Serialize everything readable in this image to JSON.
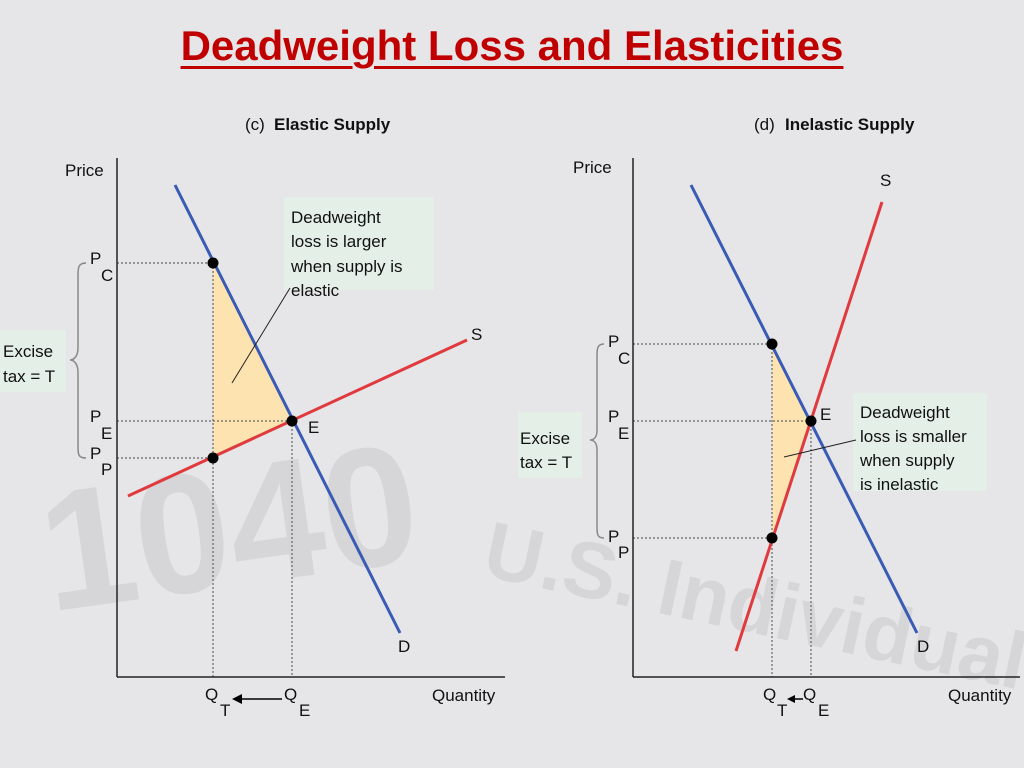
{
  "title": "Deadweight Loss and Elasticities",
  "panel_c": {
    "prefix": "(c)",
    "heading": "Elastic Supply",
    "y_axis": "Price",
    "x_axis": "Quantity",
    "p_main": "P",
    "pc_sub": "C",
    "pe_sub": "E",
    "pp_sub": "P",
    "q_main": "Q",
    "qt_sub": "T",
    "qe_sub": "E",
    "point_e": "E",
    "supply": "S",
    "demand": "D",
    "tax_line1": "Excise",
    "tax_line2": "tax = T",
    "note": [
      "Deadweight",
      "loss is larger",
      "when supply is",
      "elastic"
    ]
  },
  "panel_d": {
    "prefix": "(d)",
    "heading": "Inelastic Supply",
    "y_axis": "Price",
    "x_axis": "Quantity",
    "p_main": "P",
    "pc_sub": "C",
    "pe_sub": "E",
    "pp_sub": "P",
    "q_main": "Q",
    "qt_sub": "T",
    "qe_sub": "E",
    "point_e": "E",
    "supply": "S",
    "demand": "D",
    "tax_line1": "Excise",
    "tax_line2": "tax = T",
    "note": [
      "Deadweight",
      "loss is smaller",
      "when supply",
      "is inelastic"
    ]
  },
  "colors": {
    "title": "#c00000",
    "demand": "#3a5bb5",
    "supply": "#e03a3e",
    "deadweight": "#fde3b0",
    "callout": "#e4efe8"
  }
}
